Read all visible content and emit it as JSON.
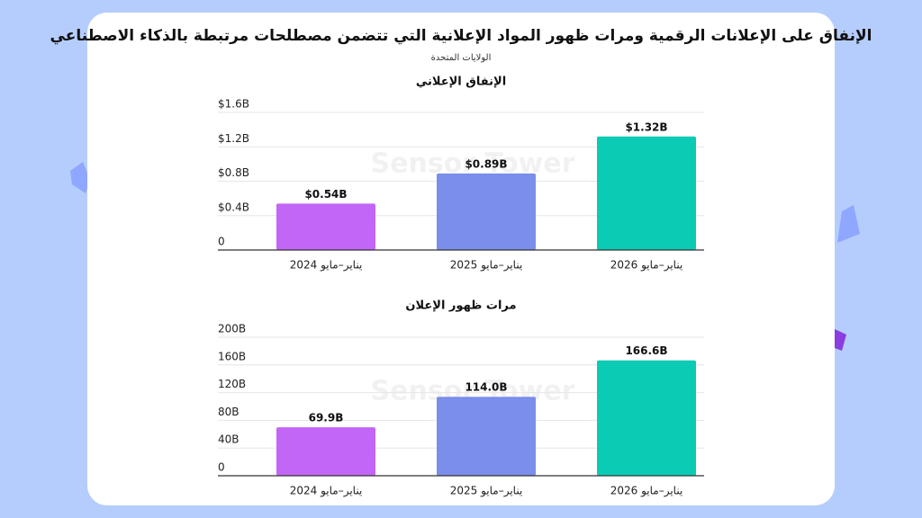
{
  "header": {
    "title": "الإنفاق على الإعلانات الرقمية ومرات ظهور المواد الإعلانية التي تتضمن مصطلحات مرتبطة بالذكاء الاصطناعي",
    "subtitle": "الولايات المتحدة",
    "watermark": "Sensor Tower"
  },
  "chart_data": [
    {
      "type": "bar",
      "title": "الإنفاق الإعلاني",
      "categories": [
        "يناير–مايو 2024",
        "يناير–مايو 2025",
        "يناير–مايو 2026"
      ],
      "values": [
        0.54,
        0.89,
        1.32
      ],
      "value_labels": [
        "$0.54B",
        "$0.89B",
        "$1.32B"
      ],
      "colors": [
        "#c266f7",
        "#7a8eea",
        "#0ccbb5"
      ],
      "ylim": [
        0,
        1.6
      ],
      "yticks": [
        0,
        {
          "value": 0.4,
          "label": "$0.4B"
        },
        {
          "value": 0.8,
          "label": "$0.8B"
        },
        {
          "value": 1.2,
          "label": "$1.2B"
        },
        {
          "value": 1.6,
          "label": "$1.6B"
        }
      ],
      "grid": true
    },
    {
      "type": "bar",
      "title": "مرات ظهور الإعلان",
      "categories": [
        "يناير–مايو 2024",
        "يناير–مايو 2025",
        "يناير–مايو 2026"
      ],
      "values": [
        69.9,
        114.0,
        166.6
      ],
      "value_labels": [
        "69.9B",
        "114.0B",
        "166.6B"
      ],
      "colors": [
        "#c266f7",
        "#7a8eea",
        "#0ccbb5"
      ],
      "ylim": [
        0,
        200
      ],
      "yticks": [
        0,
        {
          "value": 40,
          "label": "40B"
        },
        {
          "value": 80,
          "label": "80B"
        },
        {
          "value": 120,
          "label": "120B"
        },
        {
          "value": 160,
          "label": "160B"
        },
        {
          "value": 200,
          "label": "200B"
        }
      ],
      "grid": true
    }
  ]
}
